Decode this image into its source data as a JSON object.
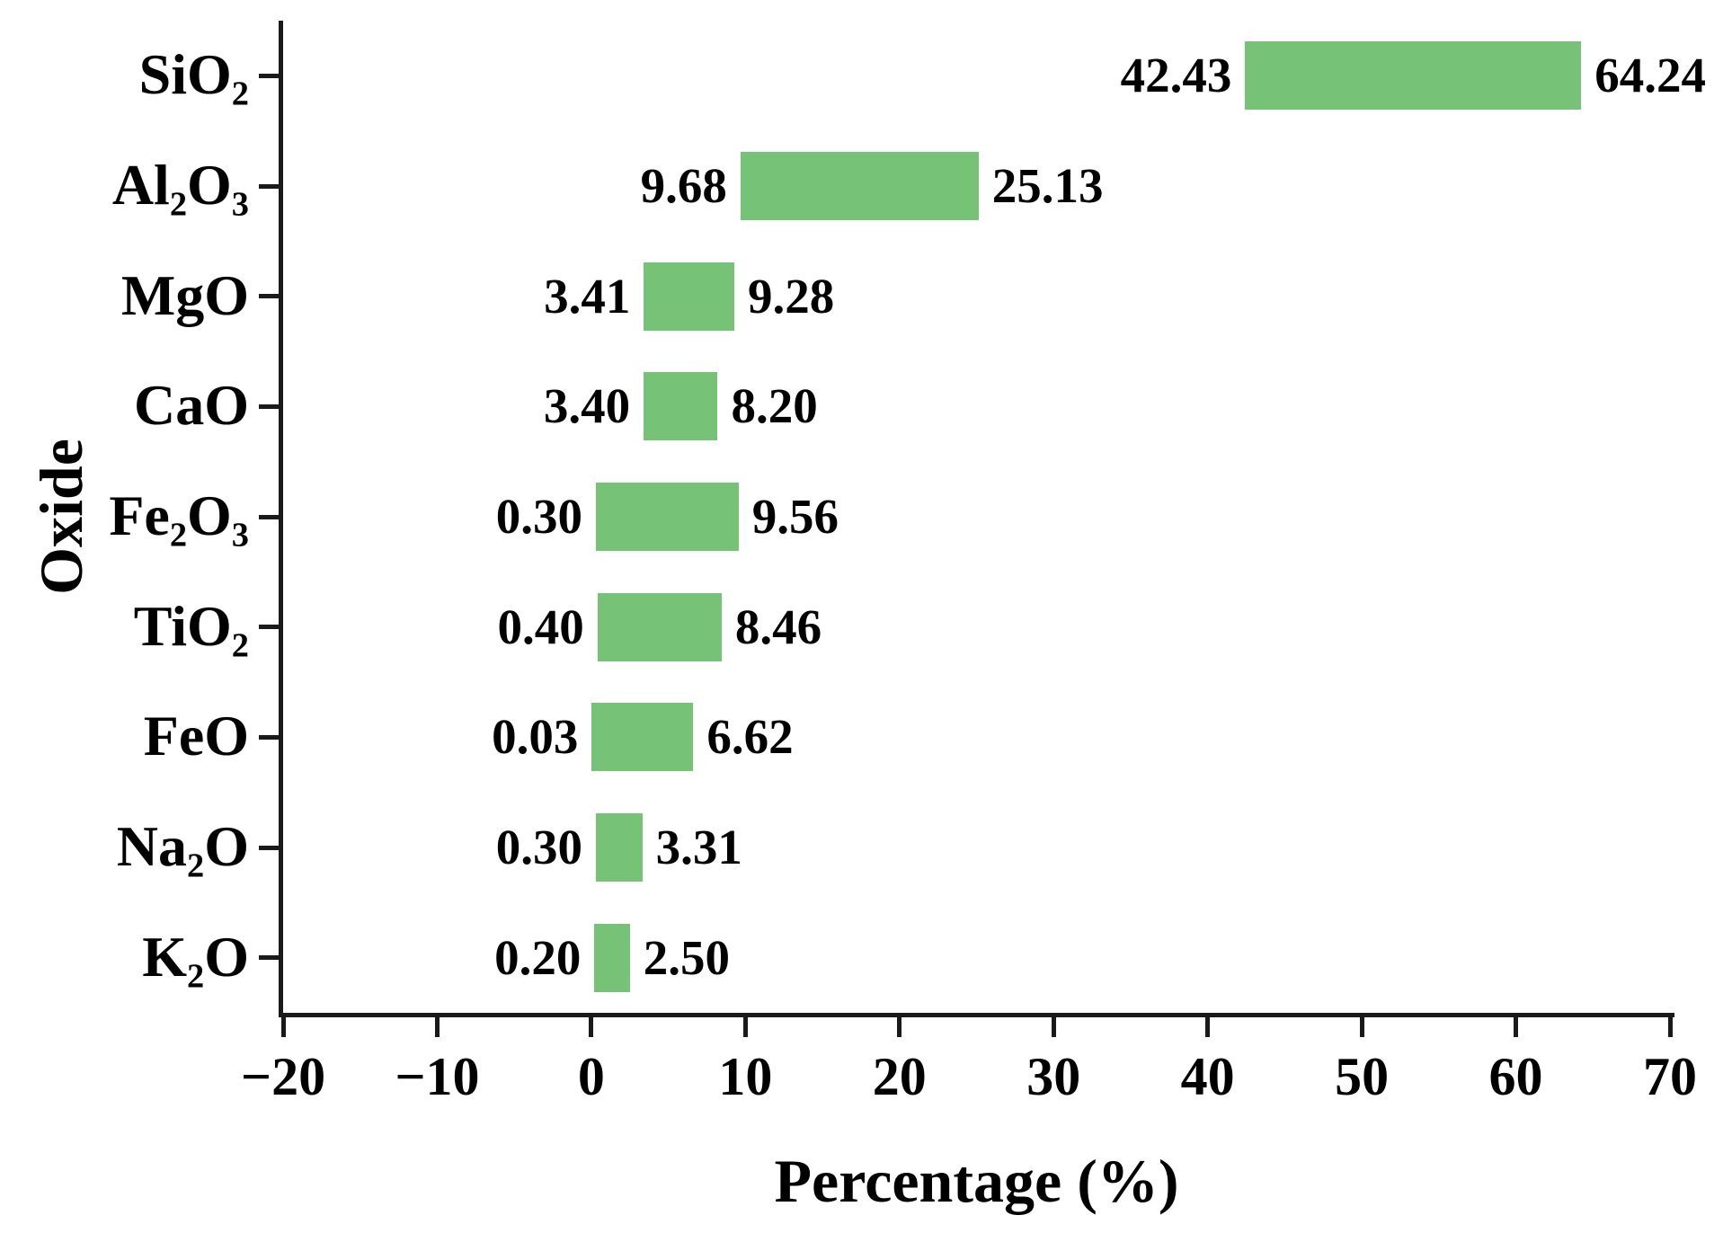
{
  "chart_data": {
    "type": "bar",
    "subtype": "horizontal-range-bar",
    "title": "",
    "xlabel": "Percentage (%)",
    "ylabel": "Oxide",
    "xlim": [
      -20,
      70
    ],
    "xticks": [
      -20,
      -10,
      0,
      10,
      20,
      30,
      40,
      50,
      60,
      70
    ],
    "xtick_labels": [
      "−20",
      "−10",
      "0",
      "10",
      "20",
      "30",
      "40",
      "50",
      "60",
      "70"
    ],
    "grid": false,
    "legend": null,
    "bar_color": "#76c276",
    "categories": [
      {
        "name": "SiO2",
        "segments": [
          {
            "t": "SiO"
          },
          {
            "t": "2",
            "sub": true
          }
        ],
        "min": 42.43,
        "max": 64.24,
        "min_label": "42.43",
        "max_label": "64.24"
      },
      {
        "name": "Al2O3",
        "segments": [
          {
            "t": "Al"
          },
          {
            "t": "2",
            "sub": true
          },
          {
            "t": "O"
          },
          {
            "t": "3",
            "sub": true
          }
        ],
        "min": 9.68,
        "max": 25.13,
        "min_label": "9.68",
        "max_label": "25.13"
      },
      {
        "name": "MgO",
        "segments": [
          {
            "t": "MgO"
          }
        ],
        "min": 3.41,
        "max": 9.28,
        "min_label": "3.41",
        "max_label": "9.28"
      },
      {
        "name": "CaO",
        "segments": [
          {
            "t": "CaO"
          }
        ],
        "min": 3.4,
        "max": 8.2,
        "min_label": "3.40",
        "max_label": "8.20"
      },
      {
        "name": "Fe2O3",
        "segments": [
          {
            "t": "Fe"
          },
          {
            "t": "2",
            "sub": true
          },
          {
            "t": "O"
          },
          {
            "t": "3",
            "sub": true
          }
        ],
        "min": 0.3,
        "max": 9.56,
        "min_label": "0.30",
        "max_label": "9.56"
      },
      {
        "name": "TiO2",
        "segments": [
          {
            "t": "TiO"
          },
          {
            "t": "2",
            "sub": true
          }
        ],
        "min": 0.4,
        "max": 8.46,
        "min_label": "0.40",
        "max_label": "8.46"
      },
      {
        "name": "FeO",
        "segments": [
          {
            "t": "FeO"
          }
        ],
        "min": 0.03,
        "max": 6.62,
        "min_label": "0.03",
        "max_label": "6.62"
      },
      {
        "name": "Na2O",
        "segments": [
          {
            "t": "Na"
          },
          {
            "t": "2",
            "sub": true
          },
          {
            "t": "O"
          }
        ],
        "min": 0.3,
        "max": 3.31,
        "min_label": "0.30",
        "max_label": "3.31"
      },
      {
        "name": "K2O",
        "segments": [
          {
            "t": "K"
          },
          {
            "t": "2",
            "sub": true
          },
          {
            "t": "O"
          }
        ],
        "min": 0.2,
        "max": 2.5,
        "min_label": "0.20",
        "max_label": "2.50"
      }
    ]
  }
}
